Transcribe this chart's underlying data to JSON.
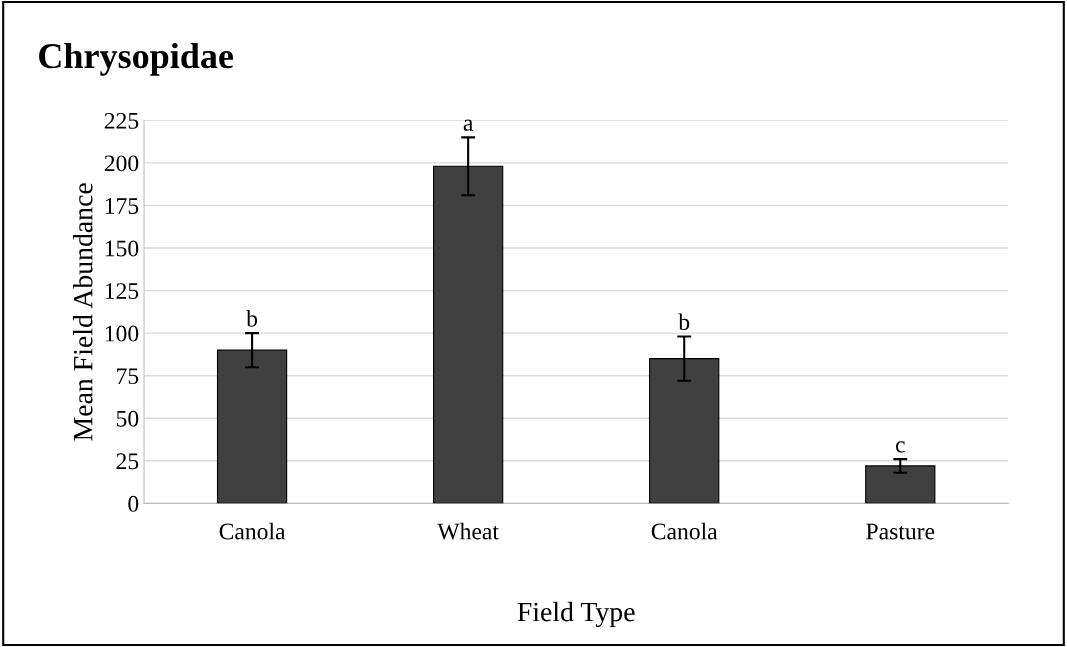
{
  "chart_data": {
    "type": "bar",
    "title": "Chrysopidae",
    "xlabel": "Field Type",
    "ylabel": "Mean Field Abundance",
    "categories": [
      "Canola",
      "Wheat",
      "Canola",
      "Pasture"
    ],
    "values": [
      90,
      198,
      85,
      22
    ],
    "errors": [
      10,
      17,
      13,
      4
    ],
    "color": "#404040",
    "annotations": [
      "b",
      "a",
      "b",
      "c"
    ],
    "ylim": [
      0,
      225
    ],
    "yticks": [
      0,
      25,
      50,
      75,
      100,
      125,
      150,
      175,
      200,
      225
    ],
    "grid": "y",
    "legend": false
  }
}
